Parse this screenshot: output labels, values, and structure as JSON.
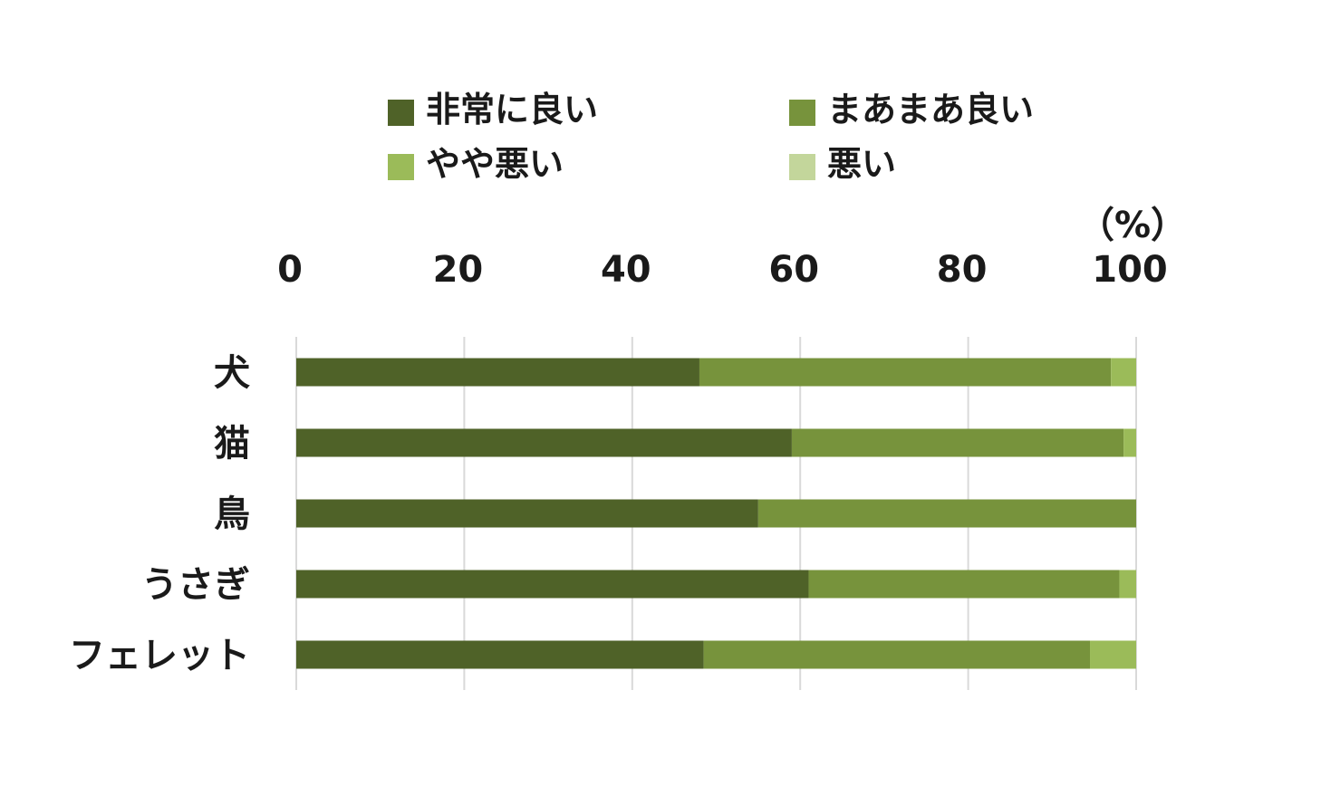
{
  "chart_data": {
    "type": "bar",
    "orientation": "horizontal",
    "stacked": true,
    "unit_label": "（%）",
    "categories": [
      "犬",
      "猫",
      "鳥",
      "うさぎ",
      "フェレット"
    ],
    "x_ticks": [
      "0",
      "20",
      "40",
      "60",
      "80",
      "100"
    ],
    "xlim": [
      0,
      100
    ],
    "x_axis_position": "top",
    "grid": true,
    "legend_position": "top",
    "series": [
      {
        "name": "非常に良い",
        "color": "#4f6228",
        "values": [
          48,
          59,
          55,
          61,
          48.5
        ]
      },
      {
        "name": "まあまあ良い",
        "color": "#77933c",
        "values": [
          49,
          39.5,
          45,
          37,
          46
        ]
      },
      {
        "name": "やや悪い",
        "color": "#9bbb59",
        "values": [
          3,
          1.5,
          0,
          2,
          5.5
        ]
      },
      {
        "name": "悪い",
        "color": "#c3d69b",
        "values": [
          0,
          0,
          0,
          0,
          0
        ]
      }
    ]
  }
}
